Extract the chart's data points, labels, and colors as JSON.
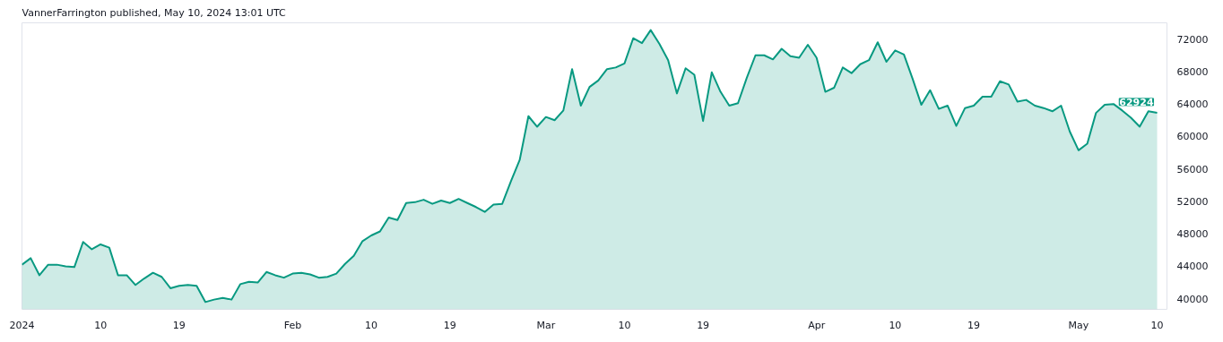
{
  "chart_data": {
    "type": "area",
    "title": "VannerFarrington published, May 10, 2024 13:01 UTC",
    "x": [
      "2024-01-01",
      "2024-01-02",
      "2024-01-03",
      "2024-01-04",
      "2024-01-05",
      "2024-01-06",
      "2024-01-07",
      "2024-01-08",
      "2024-01-09",
      "2024-01-10",
      "2024-01-11",
      "2024-01-12",
      "2024-01-13",
      "2024-01-14",
      "2024-01-15",
      "2024-01-16",
      "2024-01-17",
      "2024-01-18",
      "2024-01-19",
      "2024-01-20",
      "2024-01-21",
      "2024-01-22",
      "2024-01-23",
      "2024-01-24",
      "2024-01-25",
      "2024-01-26",
      "2024-01-27",
      "2024-01-28",
      "2024-01-29",
      "2024-01-30",
      "2024-01-31",
      "2024-02-01",
      "2024-02-02",
      "2024-02-03",
      "2024-02-04",
      "2024-02-05",
      "2024-02-06",
      "2024-02-07",
      "2024-02-08",
      "2024-02-09",
      "2024-02-10",
      "2024-02-11",
      "2024-02-12",
      "2024-02-13",
      "2024-02-14",
      "2024-02-15",
      "2024-02-16",
      "2024-02-17",
      "2024-02-18",
      "2024-02-19",
      "2024-02-20",
      "2024-02-21",
      "2024-02-22",
      "2024-02-23",
      "2024-02-24",
      "2024-02-25",
      "2024-02-26",
      "2024-02-27",
      "2024-02-28",
      "2024-02-29",
      "2024-03-01",
      "2024-03-02",
      "2024-03-03",
      "2024-03-04",
      "2024-03-05",
      "2024-03-06",
      "2024-03-07",
      "2024-03-08",
      "2024-03-09",
      "2024-03-10",
      "2024-03-11",
      "2024-03-12",
      "2024-03-13",
      "2024-03-14",
      "2024-03-15",
      "2024-03-16",
      "2024-03-17",
      "2024-03-18",
      "2024-03-19",
      "2024-03-20",
      "2024-03-21",
      "2024-03-22",
      "2024-03-23",
      "2024-03-24",
      "2024-03-25",
      "2024-03-26",
      "2024-03-27",
      "2024-03-28",
      "2024-03-29",
      "2024-03-30",
      "2024-03-31",
      "2024-04-01",
      "2024-04-02",
      "2024-04-03",
      "2024-04-04",
      "2024-04-05",
      "2024-04-06",
      "2024-04-07",
      "2024-04-08",
      "2024-04-09",
      "2024-04-10",
      "2024-04-11",
      "2024-04-12",
      "2024-04-13",
      "2024-04-14",
      "2024-04-15",
      "2024-04-16",
      "2024-04-17",
      "2024-04-18",
      "2024-04-19",
      "2024-04-20",
      "2024-04-21",
      "2024-04-22",
      "2024-04-23",
      "2024-04-24",
      "2024-04-25",
      "2024-04-26",
      "2024-04-27",
      "2024-04-28",
      "2024-04-29",
      "2024-04-30",
      "2024-05-01",
      "2024-05-02",
      "2024-05-03",
      "2024-05-04",
      "2024-05-05",
      "2024-05-06",
      "2024-05-07",
      "2024-05-08",
      "2024-05-09",
      "2024-05-10"
    ],
    "series": [
      {
        "color": "#089981",
        "values": [
          44200,
          45000,
          42900,
          44200,
          44200,
          44000,
          43900,
          47000,
          46100,
          46700,
          46300,
          42900,
          42900,
          41700,
          42500,
          43200,
          42700,
          41300,
          41600,
          41700,
          41600,
          39600,
          39900,
          40100,
          39900,
          41800,
          42100,
          42000,
          43300,
          42900,
          42600,
          43100,
          43200,
          43000,
          42600,
          42700,
          43100,
          44300,
          45300,
          47100,
          47800,
          48300,
          50000,
          49700,
          51800,
          51900,
          52200,
          51700,
          52100,
          51800,
          52300,
          51800,
          51300,
          50700,
          51600,
          51700,
          54500,
          57100,
          62500,
          61200,
          62400,
          62000,
          63200,
          68300,
          63800,
          66100,
          66900,
          68300,
          68500,
          69000,
          72100,
          71500,
          73100,
          71400,
          69400,
          65300,
          68400,
          67600,
          61900,
          67900,
          65500,
          63800,
          64100,
          67200,
          70000,
          70000,
          69500,
          70800,
          69900,
          69700,
          71300,
          69700,
          65500,
          66000,
          68500,
          67800,
          68900,
          69400,
          71600,
          69200,
          70600,
          70100,
          67100,
          63900,
          65700,
          63400,
          63800,
          61300,
          63500,
          63800,
          64900,
          64900,
          66800,
          66400,
          64300,
          64500,
          63800,
          63500,
          63100,
          63800,
          60600,
          58300,
          59100,
          62900,
          63900,
          64000,
          63200,
          62300,
          61200,
          63100,
          62924
        ]
      }
    ],
    "xlim": [
      "2024-01-01",
      "2024-05-11T03:00"
    ],
    "xticks": [
      {
        "value": "2024-01-01",
        "label": "2024"
      },
      {
        "value": "2024-01-10",
        "label": "10"
      },
      {
        "value": "2024-01-19",
        "label": "19"
      },
      {
        "value": "2024-02-01",
        "label": "Feb"
      },
      {
        "value": "2024-02-10",
        "label": "10"
      },
      {
        "value": "2024-02-19",
        "label": "19"
      },
      {
        "value": "2024-03-01",
        "label": "Mar"
      },
      {
        "value": "2024-03-10",
        "label": "10"
      },
      {
        "value": "2024-03-19",
        "label": "19"
      },
      {
        "value": "2024-04-01",
        "label": "Apr"
      },
      {
        "value": "2024-04-10",
        "label": "10"
      },
      {
        "value": "2024-04-19",
        "label": "19"
      },
      {
        "value": "2024-05-01",
        "label": "May"
      },
      {
        "value": "2024-05-10",
        "label": "10"
      }
    ],
    "ylim": [
      38700,
      74000
    ],
    "yticks": [
      40000,
      44000,
      48000,
      52000,
      56000,
      60000,
      64000,
      68000,
      72000
    ],
    "annotations": [
      {
        "text": "62924",
        "x": "2024-05-10",
        "y": 62924
      }
    ],
    "grid": false
  }
}
